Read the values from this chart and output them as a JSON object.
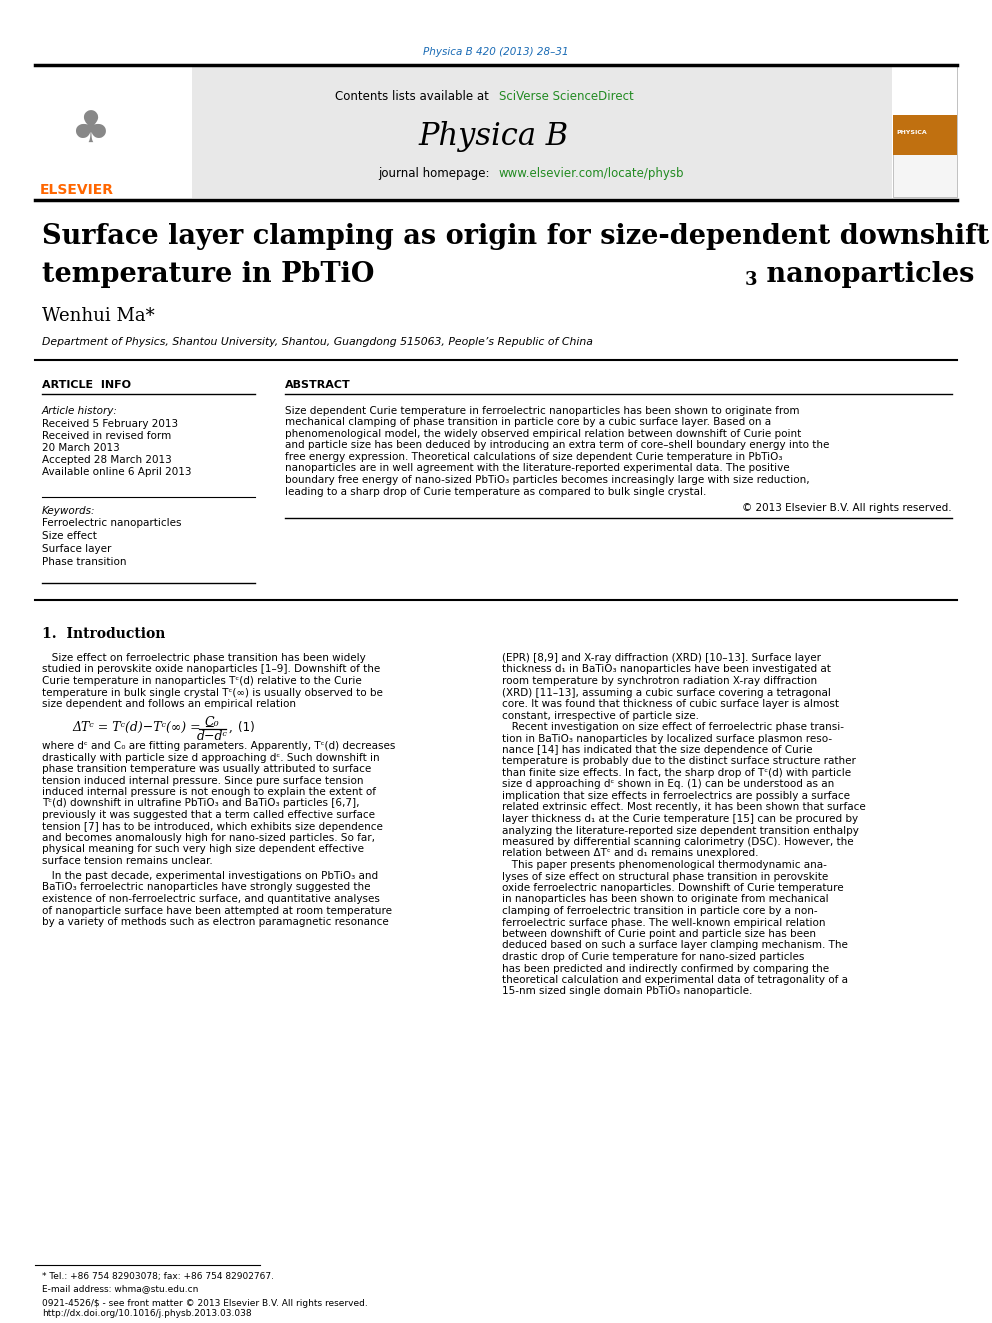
{
  "page_width": 9.92,
  "page_height": 13.23,
  "bg_color": "#ffffff",
  "journal_ref": "Physica B 420 (2013) 28–31",
  "journal_ref_color": "#1a6bb5",
  "header_bg": "#e8e8e8",
  "header_link_color": "#228B22",
  "journal_homepage_url": "www.elsevier.com/locate/physb",
  "journal_homepage_color": "#228B22",
  "title_line1": "Surface layer clamping as origin for size-dependent downshift of Curie",
  "author": "Wenhui Ma*",
  "affiliation": "Department of Physics, Shantou University, Shantou, Guangdong 515063, People’s Republic of China",
  "article_info_label": "ARTICLE  INFO",
  "abstract_label": "ABSTRACT",
  "article_history_label": "Article history:",
  "received1": "Received 5 February 2013",
  "received2": "Received in revised form",
  "received2b": "20 March 2013",
  "accepted": "Accepted 28 March 2013",
  "available": "Available online 6 April 2013",
  "keywords_label": "Keywords:",
  "keywords": [
    "Ferroelectric nanoparticles",
    "Size effect",
    "Surface layer",
    "Phase transition"
  ],
  "copyright": "© 2013 Elsevier B.V. All rights reserved.",
  "section1_title": "1.  Introduction",
  "footnote_star": "* Tel.: +86 754 82903078; fax: +86 754 82902767.",
  "footnote_email": "E-mail address: whma@stu.edu.cn",
  "footer1": "0921-4526/$ - see front matter © 2013 Elsevier B.V. All rights reserved.",
  "footer2": "http://dx.doi.org/10.1016/j.physb.2013.03.038",
  "elsevier_color": "#FF6600",
  "text_color": "#000000"
}
